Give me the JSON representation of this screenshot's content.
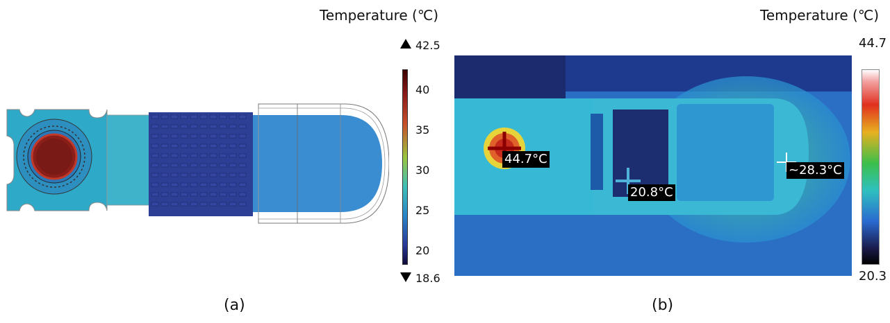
{
  "panel_a": {
    "colorbar_title": "Temperature (℃)",
    "max_label": "42.5",
    "min_label": "18.6",
    "ticks": [
      "40",
      "35",
      "30",
      "25",
      "20"
    ],
    "caption": "(a)"
  },
  "panel_b": {
    "colorbar_title": "Temperature (℃)",
    "max_label": "44.7",
    "min_label": "20.3",
    "markers": [
      "44.7°C",
      "20.8°C",
      "~28.3°C"
    ],
    "caption": "(b)"
  },
  "icons": [
    "up-triangle-icon",
    "down-triangle-icon",
    "crosshair-icon"
  ]
}
